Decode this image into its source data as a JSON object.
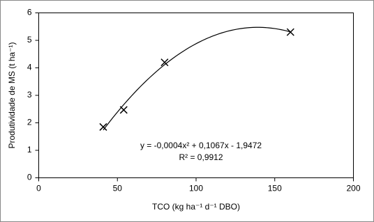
{
  "chart_data": {
    "type": "scatter",
    "x_label": "TCO (kg ha⁻¹ d⁻¹ DBO)",
    "y_label": "Produtividade de MS (t ha⁻¹)",
    "x": [
      41,
      54,
      80,
      160
    ],
    "values": [
      1.85,
      2.47,
      4.2,
      5.3
    ],
    "color": "#000000",
    "marker": "x",
    "xlim": [
      0,
      200
    ],
    "xticks": [
      0,
      50,
      100,
      150,
      200
    ],
    "ylim": [
      0,
      6
    ],
    "yticks": [
      0,
      1,
      2,
      3,
      4,
      5,
      6
    ],
    "trendline": {
      "type": "polynomial",
      "order": 2,
      "equation": "y = -0,0004x² + 0,1067x - 1,9472",
      "r_squared": "R² = 0,9912"
    }
  }
}
